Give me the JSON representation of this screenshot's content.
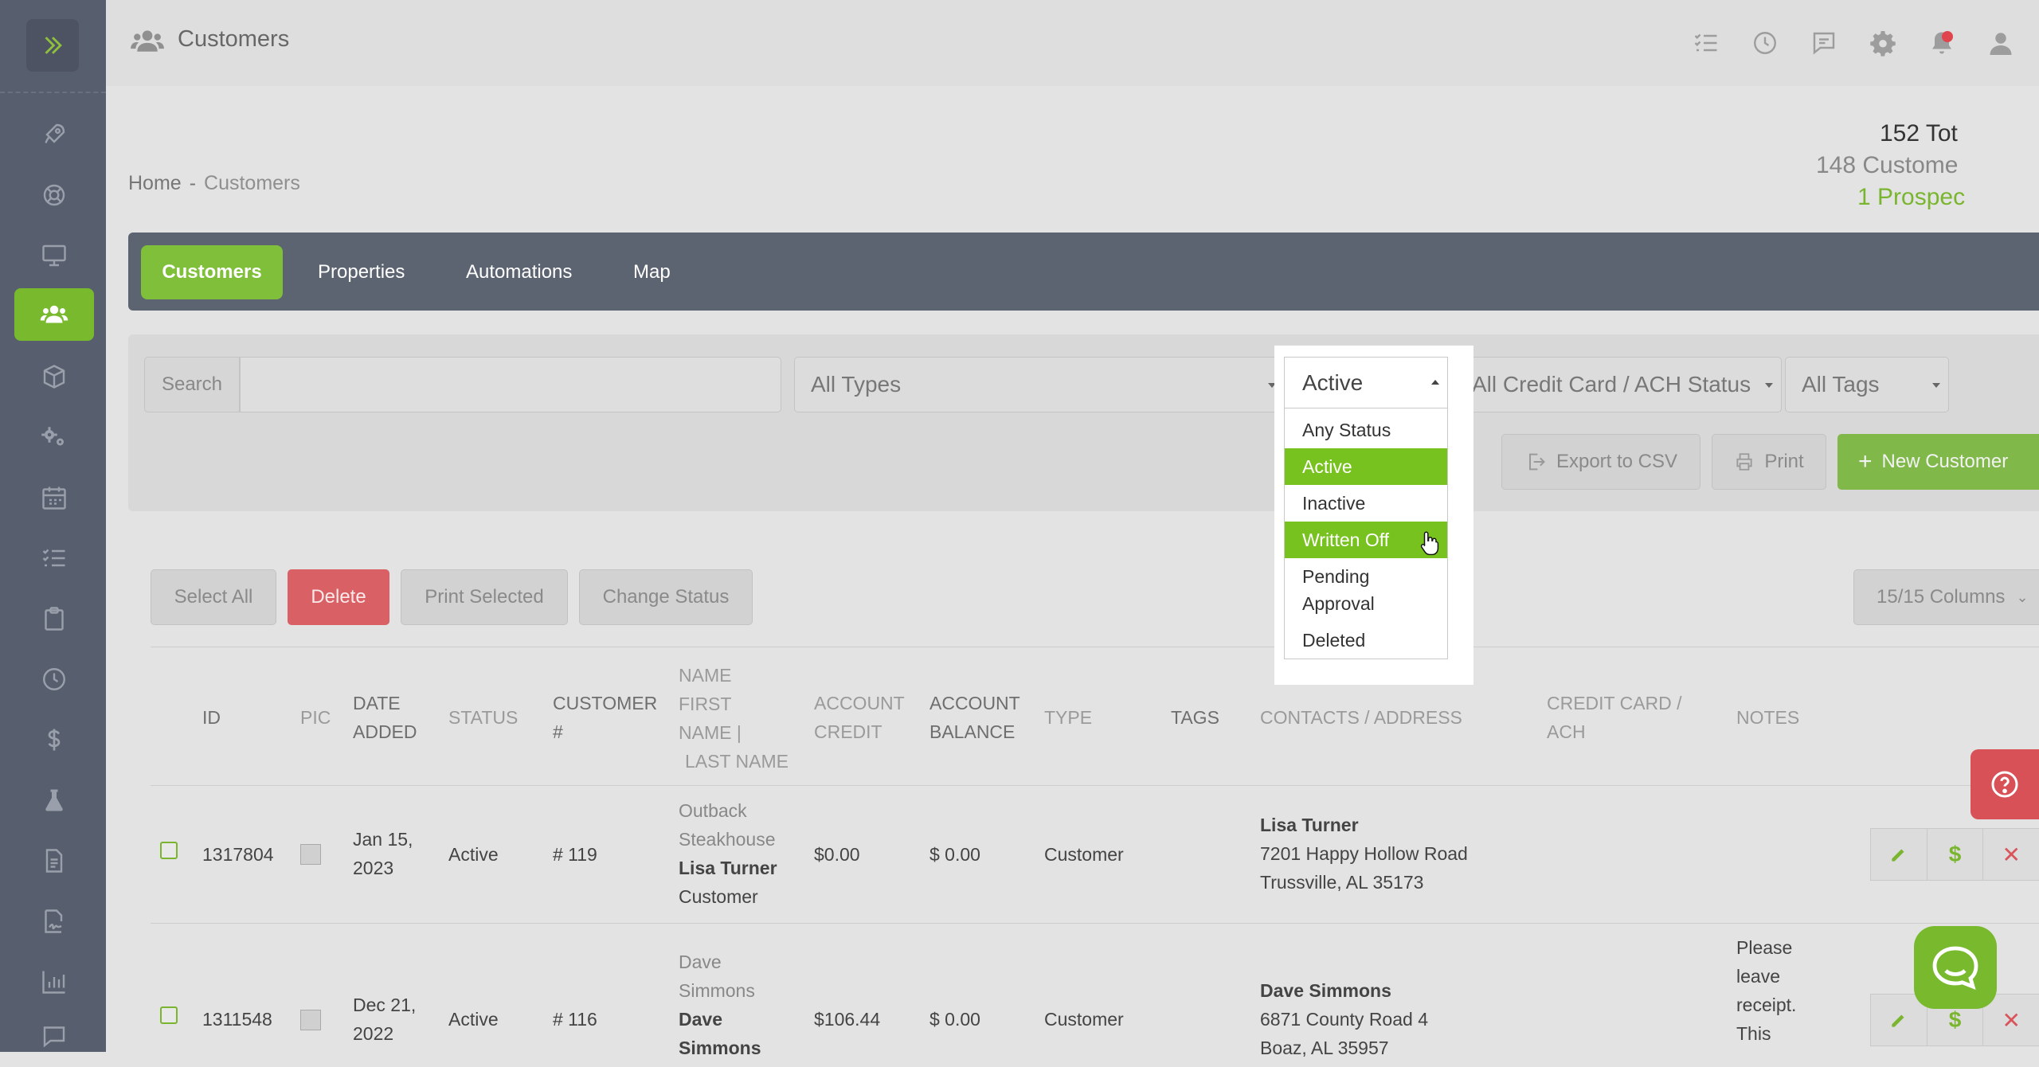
{
  "sidebar": {
    "items": [
      {
        "icon": "rocket-icon"
      },
      {
        "icon": "lifebuoy-icon"
      },
      {
        "icon": "monitor-icon"
      },
      {
        "icon": "users-icon",
        "active": true
      },
      {
        "icon": "box-icon"
      },
      {
        "icon": "gears-icon"
      },
      {
        "icon": "calendar-icon"
      },
      {
        "icon": "checklist-icon"
      },
      {
        "icon": "clipboard-icon"
      },
      {
        "icon": "clock-icon"
      },
      {
        "icon": "dollar-icon"
      },
      {
        "icon": "flask-icon"
      },
      {
        "icon": "document-icon"
      },
      {
        "icon": "signature-icon"
      },
      {
        "icon": "bar-chart-icon"
      },
      {
        "icon": "chat-bubble-icon"
      }
    ]
  },
  "header": {
    "title": "Customers",
    "icons": [
      "checklist-icon",
      "clock-icon",
      "message-icon",
      "gear-icon",
      "bell-icon",
      "user-icon"
    ]
  },
  "breadcrumb": {
    "home": "Home",
    "separator": "-",
    "current": "Customers"
  },
  "totals": {
    "total": "152 Tot",
    "customers": "148 Custome",
    "prospects": "1 Prospec"
  },
  "tabs": [
    "Customers",
    "Properties",
    "Automations",
    "Map"
  ],
  "filters": {
    "search_label": "Search",
    "search_value": "",
    "type": "All Types",
    "status": "Active",
    "card_status": "All Credit Card / ACH Status",
    "tags": "All Tags"
  },
  "toolbar": {
    "export": "Export to CSV",
    "print": "Print",
    "new_customer": "New Customer"
  },
  "bulk": {
    "select_all": "Select All",
    "delete": "Delete",
    "print_selected": "Print Selected",
    "change_status": "Change Status",
    "columns": "15/15 Columns"
  },
  "status_dropdown": {
    "options": [
      "Any Status",
      "Active",
      "Inactive",
      "Written Off",
      "Pending Approval",
      "Deleted"
    ]
  },
  "table": {
    "headers": {
      "id": "ID",
      "pic": "PIC",
      "date_added": "DATE ADDED",
      "status": "STATUS",
      "customer_no": "CUSTOMER #",
      "name_1": "NAME",
      "name_2": "FIRST",
      "name_3": "NAME |",
      "name_4": "LAST NAME",
      "account_credit": "ACCOUNT CREDIT",
      "account_balance": "ACCOUNT BALANCE",
      "type": "TYPE",
      "tags": "TAGS",
      "contacts": "CONTACTS / ADDRESS",
      "card": "CREDIT CARD / ACH",
      "notes": "NOTES"
    },
    "rows": [
      {
        "id": "1317804",
        "date_1": "Jan 15,",
        "date_2": "2023",
        "status": "Active",
        "customer_no": "# 119",
        "company_1": "Outback",
        "company_2": "Steakhouse",
        "name": "Lisa Turner",
        "role": "Customer",
        "credit": "$0.00",
        "balance": "$ 0.00",
        "type": "Customer",
        "contact": "Lisa Turner",
        "address_1": "7201 Happy Hollow Road",
        "address_2": "Trussville, AL 35173",
        "notes": ""
      },
      {
        "id": "1311548",
        "date_1": "Dec 21,",
        "date_2": "2022",
        "status": "Active",
        "customer_no": "# 116",
        "company_1": "Dave",
        "company_2": "Simmons",
        "name_1": "Dave",
        "name_2": "Simmons",
        "credit": "$106.44",
        "balance": "$ 0.00",
        "type": "Customer",
        "contact": "Dave Simmons",
        "address_1": "6871 County Road 4",
        "address_2": "Boaz, AL 35957",
        "notes_1": "Please",
        "notes_2": "leave",
        "notes_3": "receipt.",
        "notes_4": "This"
      }
    ]
  },
  "colors": {
    "accent": "#78b92e",
    "danger": "#d96065",
    "sidebar": "#575e6d",
    "tabbar": "#5d6471"
  }
}
